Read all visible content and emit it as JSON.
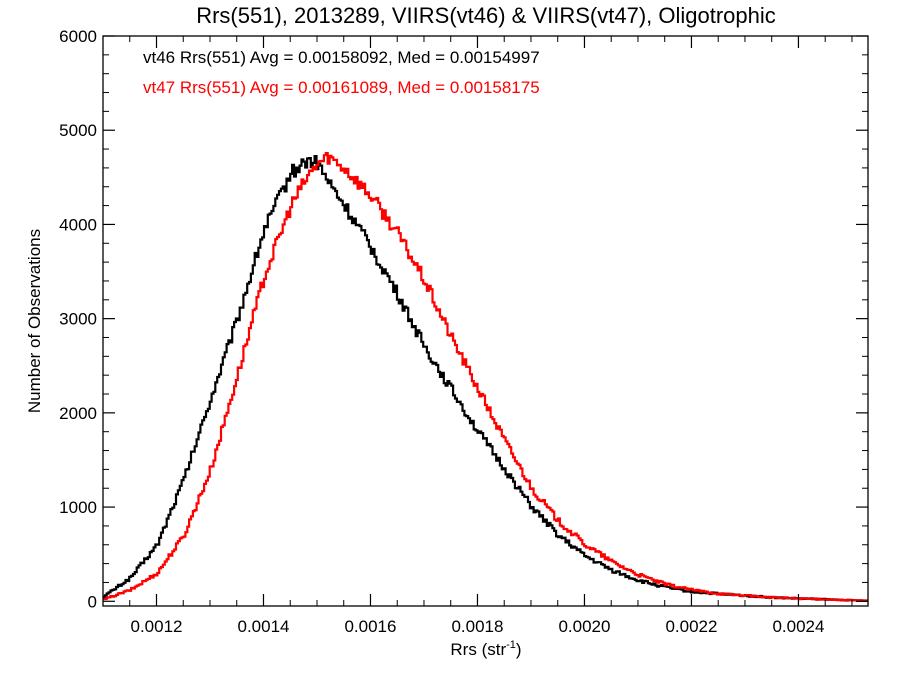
{
  "chart_data": {
    "type": "line",
    "title": "Rrs(551), 2013289, VIIRS(vt46) & VIIRS(vt47), Oligotrophic",
    "xlabel": "Rrs (str",
    "xlabel_sup": "-1",
    "xlabel_close": ")",
    "ylabel": "Number of Observations",
    "xlim": [
      0.0011,
      0.00253
    ],
    "ylim": [
      -50,
      6000
    ],
    "x_ticks": [
      0.0012,
      0.0014,
      0.0016,
      0.0018,
      0.002,
      0.0022,
      0.0024
    ],
    "x_tick_labels": [
      "0.0012",
      "0.0014",
      "0.0016",
      "0.0018",
      "0.0020",
      "0.0022",
      "0.0024"
    ],
    "y_ticks": [
      0,
      1000,
      2000,
      3000,
      4000,
      5000,
      6000
    ],
    "y_tick_labels": [
      "0",
      "1000",
      "2000",
      "3000",
      "4000",
      "5000",
      "6000"
    ],
    "grid": false,
    "legend_position": "top-left",
    "series": [
      {
        "name": "vt46",
        "legend_text": "vt46 Rrs(551) Avg = 0.00158092, Med = 0.00154997",
        "color": "#000000",
        "x": [
          0.0011,
          0.00115,
          0.0012,
          0.00125,
          0.0013,
          0.00135,
          0.0014,
          0.00145,
          0.00148,
          0.0015,
          0.00152,
          0.00155,
          0.0016,
          0.00165,
          0.0017,
          0.00175,
          0.0018,
          0.00185,
          0.0019,
          0.00195,
          0.002,
          0.00205,
          0.0021,
          0.00215,
          0.0022,
          0.00225,
          0.0023,
          0.00235,
          0.0024,
          0.00245,
          0.0025,
          0.00253
        ],
        "y": [
          50,
          250,
          600,
          1300,
          2150,
          3000,
          3950,
          4550,
          4680,
          4650,
          4450,
          4200,
          3750,
          3250,
          2700,
          2250,
          1800,
          1400,
          1000,
          700,
          480,
          330,
          220,
          150,
          100,
          80,
          60,
          40,
          30,
          20,
          10,
          5
        ]
      },
      {
        "name": "vt47",
        "legend_text": "vt47 Rrs(551) Avg = 0.00161089, Med = 0.00158175",
        "color": "#ff0000",
        "x": [
          0.0011,
          0.00115,
          0.0012,
          0.00125,
          0.0013,
          0.00135,
          0.0014,
          0.00145,
          0.00148,
          0.0015,
          0.00152,
          0.00155,
          0.0016,
          0.00165,
          0.0017,
          0.00175,
          0.0018,
          0.00185,
          0.0019,
          0.00195,
          0.002,
          0.00205,
          0.0021,
          0.00215,
          0.0022,
          0.00225,
          0.0023,
          0.00235,
          0.0024,
          0.00245,
          0.0025,
          0.00253
        ],
        "y": [
          20,
          120,
          300,
          700,
          1400,
          2400,
          3450,
          4200,
          4500,
          4650,
          4720,
          4600,
          4300,
          3900,
          3400,
          2800,
          2250,
          1700,
          1200,
          850,
          600,
          420,
          280,
          180,
          120,
          80,
          60,
          40,
          30,
          20,
          10,
          5
        ]
      }
    ]
  }
}
